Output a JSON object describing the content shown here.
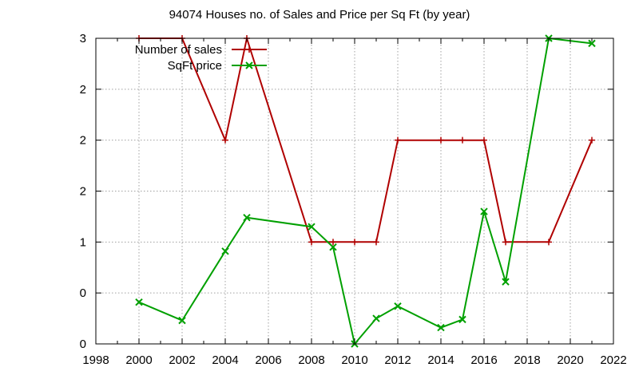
{
  "chart_data": {
    "type": "line",
    "title": "94074 Houses no. of Sales and Price per Sq Ft (by year)",
    "xlabel": "",
    "ylabel": "",
    "xlim": [
      1998,
      2022
    ],
    "ylim": [
      0,
      3
    ],
    "x_ticks": [
      "1998",
      "2000",
      "2002",
      "2004",
      "2006",
      "2008",
      "2010",
      "2012",
      "2014",
      "2016",
      "2018",
      "2020",
      "2022"
    ],
    "y_ticks": [
      "0",
      "0",
      "1",
      "2",
      "2",
      "2",
      "3"
    ],
    "grid": true,
    "legend_position": "top-left",
    "series": [
      {
        "name": "Number of sales",
        "color": "#b00000",
        "marker": "plus",
        "points": [
          [
            2000,
            3.0
          ],
          [
            2002,
            3.0
          ],
          [
            2004,
            2.0
          ],
          [
            2005,
            3.0
          ],
          [
            2008,
            1.0
          ],
          [
            2009,
            1.0
          ],
          [
            2010,
            1.0
          ],
          [
            2011,
            1.0
          ],
          [
            2012,
            2.0
          ],
          [
            2014,
            2.0
          ],
          [
            2015,
            2.0
          ],
          [
            2016,
            2.0
          ],
          [
            2017,
            1.0
          ],
          [
            2019,
            1.0
          ],
          [
            2021,
            2.0
          ]
        ]
      },
      {
        "name": "SqFt price",
        "color": "#00a000",
        "marker": "cross",
        "points": [
          [
            2000,
            0.41
          ],
          [
            2002,
            0.23
          ],
          [
            2004,
            0.91
          ],
          [
            2005,
            1.24
          ],
          [
            2008,
            1.15
          ],
          [
            2009,
            0.95
          ],
          [
            2010,
            0.0
          ],
          [
            2011,
            0.25
          ],
          [
            2012,
            0.37
          ],
          [
            2014,
            0.16
          ],
          [
            2015,
            0.24
          ],
          [
            2016,
            1.3
          ],
          [
            2017,
            0.61
          ],
          [
            2019,
            3.0
          ],
          [
            2021,
            2.95
          ]
        ]
      }
    ]
  }
}
